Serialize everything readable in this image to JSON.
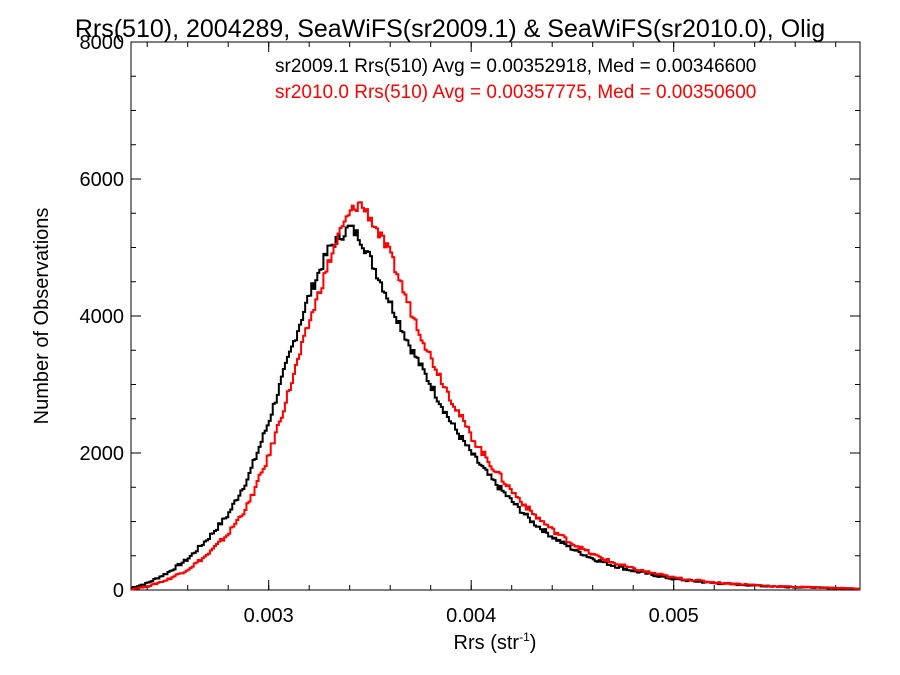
{
  "chart_data": {
    "type": "line",
    "title": "Rrs(510), 2004289, SeaWiFS(sr2009.1) & SeaWiFS(sr2010.0), Olig",
    "xlabel": "Rrs (str",
    "xlabel_sup": "-1",
    "xlabel_close": ")",
    "ylabel": "Number of Observations",
    "xlim": [
      0.00232,
      0.00592
    ],
    "ylim": [
      0,
      8000
    ],
    "x_ticks": [
      {
        "value": 0.003,
        "label": "0.003"
      },
      {
        "value": 0.004,
        "label": "0.004"
      },
      {
        "value": 0.005,
        "label": "0.005"
      }
    ],
    "y_ticks": [
      {
        "value": 0,
        "label": "0"
      },
      {
        "value": 2000,
        "label": "2000"
      },
      {
        "value": 4000,
        "label": "4000"
      },
      {
        "value": 6000,
        "label": "6000"
      },
      {
        "value": 8000,
        "label": "8000"
      }
    ],
    "chart_style": "step histogram, no grid, box axes",
    "series": [
      {
        "name": "sr2009.1",
        "color": "#000000",
        "x": [
          0.00232,
          0.0024,
          0.0025,
          0.0026,
          0.0027,
          0.0028,
          0.0029,
          0.003,
          0.0031,
          0.0032,
          0.0033,
          0.00335,
          0.0034,
          0.00345,
          0.0035,
          0.0036,
          0.0037,
          0.0038,
          0.0039,
          0.004,
          0.0041,
          0.0042,
          0.0043,
          0.0044,
          0.0045,
          0.0046,
          0.0047,
          0.0048,
          0.005,
          0.0052,
          0.0055,
          0.0059
        ],
        "y": [
          30,
          100,
          250,
          450,
          750,
          1100,
          1650,
          2450,
          3400,
          4300,
          5000,
          5150,
          5300,
          5150,
          4850,
          4200,
          3550,
          3000,
          2450,
          2000,
          1620,
          1300,
          1000,
          780,
          600,
          460,
          360,
          280,
          160,
          100,
          50,
          20
        ]
      },
      {
        "name": "sr2010.0",
        "color": "#ff0000",
        "x": [
          0.00232,
          0.0024,
          0.0025,
          0.0026,
          0.0027,
          0.0028,
          0.0029,
          0.003,
          0.0031,
          0.0032,
          0.0033,
          0.00335,
          0.0034,
          0.00345,
          0.0035,
          0.0036,
          0.0037,
          0.0038,
          0.0039,
          0.004,
          0.0041,
          0.0042,
          0.0043,
          0.0044,
          0.0045,
          0.0046,
          0.0047,
          0.0048,
          0.005,
          0.0052,
          0.0055,
          0.0059
        ],
        "y": [
          10,
          50,
          150,
          300,
          520,
          820,
          1250,
          1950,
          2900,
          3900,
          4800,
          5200,
          5500,
          5650,
          5450,
          4900,
          4100,
          3400,
          2800,
          2250,
          1820,
          1450,
          1130,
          880,
          680,
          520,
          400,
          310,
          180,
          110,
          55,
          20
        ]
      }
    ],
    "legend_lines": [
      {
        "text": "sr2009.1 Rrs(510) Avg = 0.00352918, Med = 0.00346600",
        "color": "#000000"
      },
      {
        "text": "sr2010.0 Rrs(510) Avg = 0.00357775, Med = 0.00350600",
        "color": "#ff0000"
      }
    ],
    "legend_placement": "top-right"
  }
}
